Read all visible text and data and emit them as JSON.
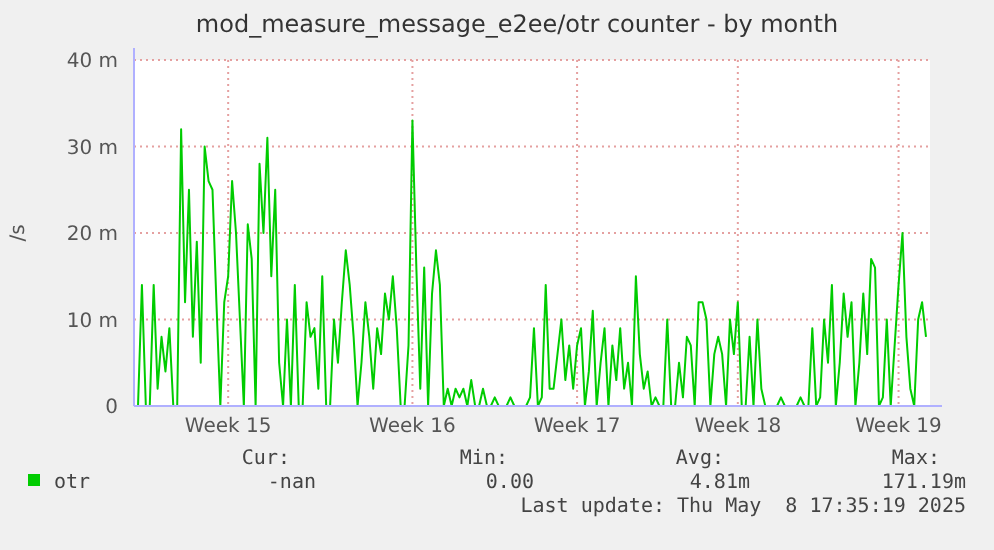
{
  "chart_data": {
    "type": "line",
    "title": "mod_measure_message_e2ee/otr counter - by month",
    "ylabel": "/s",
    "categories": [
      null,
      null,
      null,
      null,
      null,
      null,
      null,
      null,
      null,
      null,
      null,
      null,
      null,
      null,
      null,
      null,
      null,
      null,
      null,
      null,
      null,
      null,
      null,
      "Week 15",
      null,
      null,
      null,
      null,
      null,
      null,
      null,
      null,
      null,
      null,
      null,
      null,
      null,
      null,
      null,
      null,
      null,
      null,
      null,
      null,
      null,
      null,
      null,
      null,
      null,
      null,
      null,
      null,
      null,
      null,
      null,
      null,
      null,
      null,
      null,
      null,
      null,
      null,
      null,
      null,
      null,
      null,
      null,
      null,
      null,
      null,
      "Week 16",
      null,
      null,
      null,
      null,
      null,
      null,
      null,
      null,
      null,
      null,
      null,
      null,
      null,
      null,
      null,
      null,
      null,
      null,
      null,
      null,
      null,
      null,
      null,
      null,
      null,
      null,
      null,
      null,
      null,
      null,
      null,
      null,
      null,
      null,
      null,
      null,
      null,
      null,
      null,
      null,
      null,
      "Week 17",
      null,
      null,
      null,
      null,
      null,
      null,
      null,
      null,
      null,
      null,
      null,
      null,
      null,
      null,
      null,
      null,
      null,
      null,
      null,
      null,
      null,
      null,
      null,
      null,
      null,
      null,
      null,
      null,
      null,
      null,
      null,
      null,
      null,
      null,
      null,
      null,
      null,
      null,
      null,
      null,
      "Week 18",
      null,
      null,
      null,
      null,
      null,
      null,
      null,
      null,
      null,
      null,
      null,
      null,
      null,
      null,
      null,
      null,
      null,
      null,
      null,
      null,
      null,
      null,
      null,
      null,
      null,
      null,
      null,
      null,
      null,
      null,
      null,
      null,
      null,
      null,
      null,
      null,
      null,
      null,
      null,
      null,
      "Week 19",
      null,
      null,
      null,
      null,
      null,
      null,
      null
    ],
    "ylim": [
      0,
      40
    ],
    "yticks": [
      0,
      {
        "value": 10,
        "label": "10 m"
      },
      {
        "value": 20,
        "label": "20 m"
      },
      {
        "value": 30,
        "label": "30 m"
      },
      {
        "value": 40,
        "label": "40 m"
      }
    ],
    "grid": true,
    "legend": "bottom left",
    "line_style": "solid",
    "annotations": [
      "Cur:",
      "-nan",
      "Min:",
      "0.00",
      "Avg:",
      "4.81m",
      "Max:",
      "171.19m",
      "Last update: Thu May  8 17:35:19 2025"
    ],
    "series": [
      {
        "name": "otr",
        "color": "#00cc00",
        "values": [
          0,
          14,
          0,
          0,
          14,
          2,
          8,
          4,
          9,
          0,
          0,
          32,
          12,
          25,
          8,
          19,
          5,
          30,
          26,
          25,
          12,
          0,
          12,
          15,
          26,
          20,
          10,
          0,
          21,
          17,
          0,
          28,
          20,
          31,
          15,
          25,
          5,
          0,
          10,
          0,
          14,
          0,
          0,
          12,
          8,
          9,
          2,
          15,
          0,
          0,
          10,
          5,
          12,
          18,
          14,
          8,
          0,
          5,
          12,
          8,
          2,
          9,
          6,
          13,
          10,
          15,
          9,
          0,
          0,
          7,
          33,
          16,
          2,
          16,
          0,
          13,
          18,
          14,
          0,
          2,
          0,
          2,
          1,
          2,
          0,
          3,
          0,
          0,
          2,
          0,
          0,
          1,
          0,
          0,
          0,
          1,
          0,
          0,
          0,
          0,
          1,
          9,
          0,
          1,
          14,
          2,
          2,
          6,
          10,
          3,
          7,
          2,
          7,
          9,
          0,
          4,
          11,
          0,
          5,
          9,
          0,
          7,
          3,
          9,
          2,
          5,
          0,
          15,
          6,
          2,
          4,
          0,
          1,
          0,
          0,
          10,
          0,
          0,
          5,
          1,
          8,
          7,
          0,
          12,
          12,
          10,
          0,
          6,
          8,
          6,
          0,
          10,
          6,
          12,
          0,
          0,
          8,
          0,
          10,
          2,
          0,
          0,
          0,
          0,
          1,
          0,
          0,
          0,
          0,
          1,
          0,
          0,
          9,
          0,
          1,
          10,
          5,
          14,
          0,
          5,
          13,
          8,
          12,
          0,
          5,
          13,
          6,
          17,
          16,
          0,
          1,
          10,
          0,
          7,
          14,
          20,
          8,
          2,
          0,
          10,
          12,
          8
        ]
      }
    ]
  }
}
